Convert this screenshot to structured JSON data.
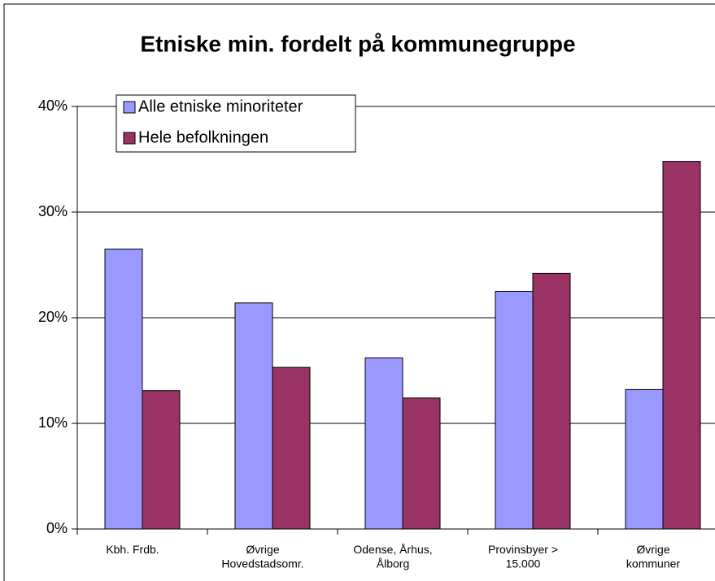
{
  "chart_data": {
    "type": "bar",
    "title": "Etniske min. fordelt på kommunegruppe",
    "categories": [
      "Kbh. Frdb.",
      "Øvrige\nHovedstadsomr.",
      "Odense, Århus,\nÅlborg",
      "Provinsbyer >\n15.000",
      "Øvrige\nkommuner"
    ],
    "series": [
      {
        "name": "Alle etniske minoriteter",
        "color": "#9999ff",
        "values": [
          26.5,
          21.4,
          16.2,
          22.5,
          13.2
        ]
      },
      {
        "name": "Hele befolkningen",
        "color": "#993366",
        "values": [
          13.1,
          15.3,
          12.4,
          24.2,
          34.8
        ]
      }
    ],
    "ylim": [
      0,
      40
    ],
    "yticks": [
      {
        "value": 0,
        "label": "0%"
      },
      {
        "value": 10,
        "label": "10%"
      },
      {
        "value": 20,
        "label": "20%"
      },
      {
        "value": 30,
        "label": "30%"
      },
      {
        "value": 40,
        "label": "40%"
      }
    ],
    "grid": true,
    "legend": "top-left"
  }
}
